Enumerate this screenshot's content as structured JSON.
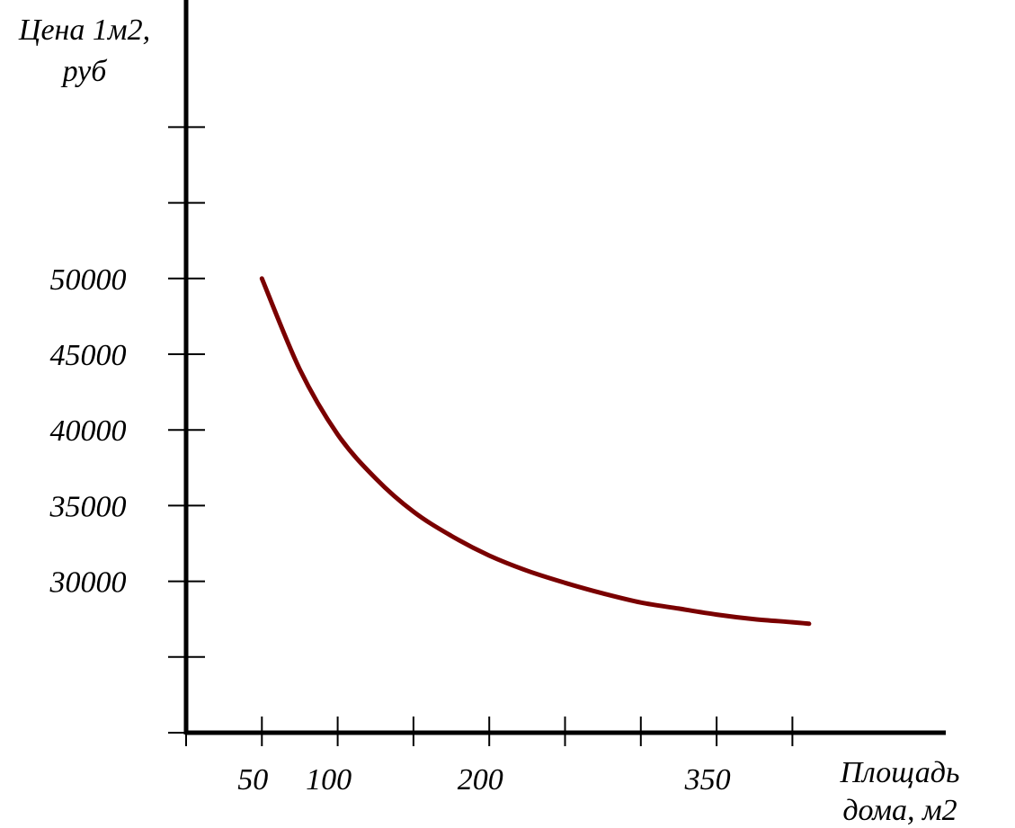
{
  "chart_data": {
    "type": "line",
    "title": "",
    "ylabel_lines": [
      "Цена 1м2,",
      "руб"
    ],
    "xlabel_lines": [
      "Площадь",
      "дома, м2"
    ],
    "x_ticks": [
      0,
      50,
      100,
      150,
      200,
      250,
      300,
      350,
      400
    ],
    "x_tick_labels": [
      {
        "value": 50,
        "label": "50"
      },
      {
        "value": 100,
        "label": "100"
      },
      {
        "value": 200,
        "label": "200"
      },
      {
        "value": 350,
        "label": "350"
      }
    ],
    "y_ticks": [
      20000,
      25000,
      30000,
      35000,
      40000,
      45000,
      50000,
      55000,
      60000
    ],
    "y_tick_labels": [
      {
        "value": 50000,
        "label": "50000"
      },
      {
        "value": 45000,
        "label": "45000"
      },
      {
        "value": 40000,
        "label": "40000"
      },
      {
        "value": 35000,
        "label": "35000"
      },
      {
        "value": 30000,
        "label": "30000"
      }
    ],
    "xlim": [
      0,
      500
    ],
    "ylim": [
      20000,
      68000
    ],
    "grid": false,
    "series": [
      {
        "color": "#7a0000",
        "x": [
          50,
          75,
          100,
          125,
          150,
          175,
          200,
          225,
          250,
          275,
          300,
          325,
          350,
          375,
          400,
          411
        ],
        "y": [
          50000,
          44000,
          39700,
          36800,
          34600,
          33000,
          31700,
          30700,
          29900,
          29200,
          28600,
          28200,
          27800,
          27500,
          27300,
          27200
        ]
      }
    ]
  }
}
